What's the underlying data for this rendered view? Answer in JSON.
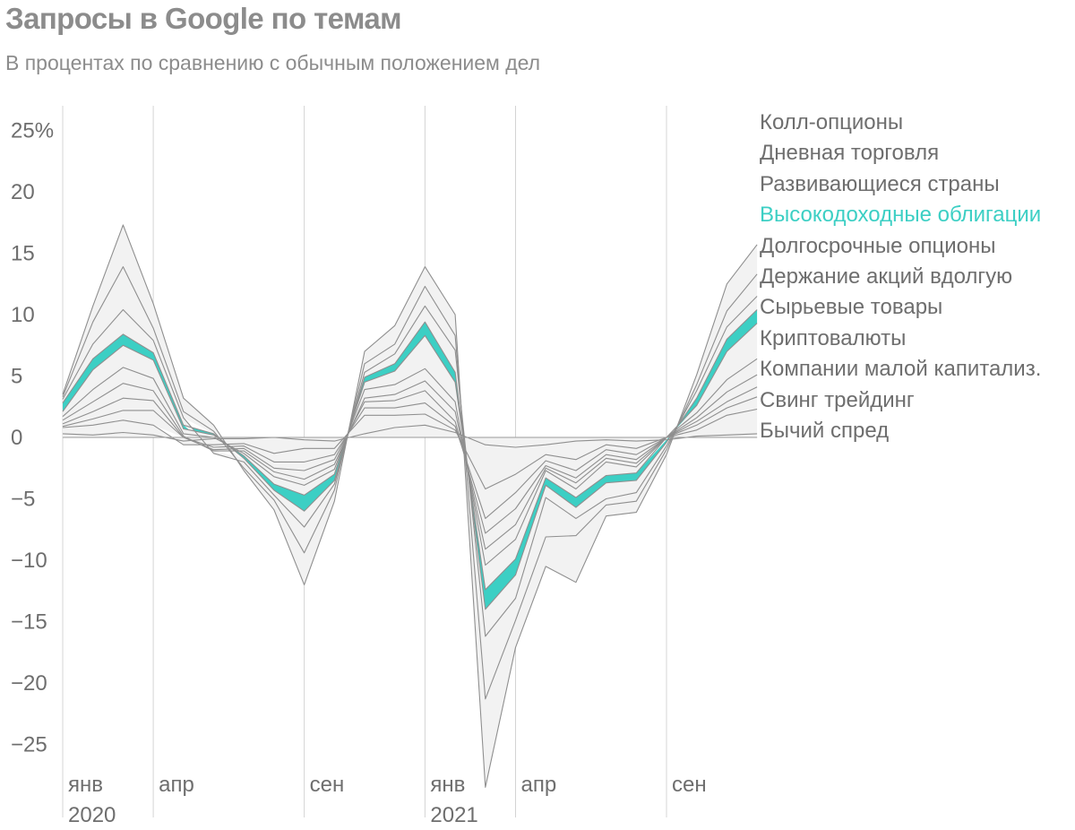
{
  "title": "Запросы в Google по темам",
  "subtitle": "В процентах по сравнению с обычным положением дел",
  "chart_data": {
    "type": "area",
    "stacked": true,
    "y_unit": "%",
    "ylim": [
      -28,
      25
    ],
    "y_ticks": [
      25,
      20,
      15,
      10,
      5,
      0,
      -5,
      -10,
      -15,
      -20,
      -25
    ],
    "y_tick_labels": [
      "25%",
      "20",
      "15",
      "10",
      "5",
      "0",
      "−5",
      "−10",
      "−15",
      "−20",
      "−25"
    ],
    "x_ticks": [
      {
        "x": "2020-01",
        "label": "янв",
        "year": "2020"
      },
      {
        "x": "2020-04",
        "label": "апр",
        "year": ""
      },
      {
        "x": "2020-09",
        "label": "сен",
        "year": ""
      },
      {
        "x": "2021-01",
        "label": "янв",
        "year": "2021"
      },
      {
        "x": "2021-04",
        "label": "апр",
        "year": ""
      },
      {
        "x": "2021-09",
        "label": "сен",
        "year": ""
      }
    ],
    "x": [
      "2020-01",
      "2020-02",
      "2020-03",
      "2020-04",
      "2020-05",
      "2020-06",
      "2020-07",
      "2020-08",
      "2020-09",
      "2020-10",
      "2020-11",
      "2020-12",
      "2021-01",
      "2021-02",
      "2021-03",
      "2021-04",
      "2021-05",
      "2021-06",
      "2021-07",
      "2021-08",
      "2021-09",
      "2021-10",
      "2021-11",
      "2021-12"
    ],
    "grid": "vertical lines at labelled months",
    "legend_position": "right",
    "highlight_color": "#3ccfc4",
    "series": [
      {
        "name": "Бычий спред",
        "values": [
          0.3,
          0.2,
          0.4,
          0.2,
          -0.3,
          -0.1,
          -0.1,
          0,
          -0.2,
          -0.3,
          0.3,
          0.8,
          1.0,
          0.4,
          -0.6,
          -0.8,
          -0.6,
          -0.3,
          -0.2,
          -0.3,
          -0.2,
          0.1,
          0.2,
          0.3
        ]
      },
      {
        "name": "Свинг трейдинг",
        "values": [
          0.5,
          0.8,
          1.0,
          0.8,
          -0.3,
          -0.5,
          -0.4,
          -1.3,
          -0.7,
          -0.6,
          1.5,
          1.0,
          0.9,
          0.2,
          -3.6,
          -2.2,
          -0.8,
          -1.5,
          -0.4,
          -0.6,
          0,
          0.5,
          1.6,
          2.0
        ]
      },
      {
        "name": "Компании малой капитализ.",
        "values": [
          0.1,
          0.5,
          0.8,
          1.2,
          0,
          -0.2,
          -0.2,
          -0.7,
          -1.1,
          -0.5,
          0.6,
          0.6,
          0.9,
          0.3,
          -2.4,
          -1.5,
          -0.5,
          -0.9,
          -0.4,
          -0.5,
          0,
          0.4,
          0.6,
          1.0
        ]
      },
      {
        "name": "Криптовалюты",
        "values": [
          0.2,
          0.6,
          1.0,
          0.8,
          0,
          -0.2,
          -0.2,
          -0.5,
          -0.7,
          -0.4,
          0.5,
          0.6,
          1.0,
          0.4,
          -1.2,
          -1.3,
          -0.4,
          -0.6,
          -0.4,
          -0.4,
          0,
          0.3,
          0.5,
          0.8
        ]
      },
      {
        "name": "Сырьевые товары",
        "values": [
          0.3,
          0.8,
          1.2,
          0.8,
          0.1,
          -0.1,
          -0.2,
          -0.3,
          -0.7,
          -0.4,
          0.3,
          0.5,
          0.8,
          0.8,
          -1.3,
          -1.3,
          -0.2,
          -0.4,
          -0.3,
          -0.3,
          0,
          0.3,
          0.8,
          1.0
        ]
      },
      {
        "name": "Держание акций вдолгую",
        "values": [
          0.3,
          1.0,
          1.3,
          1.0,
          0.2,
          0,
          -0.2,
          -0.4,
          -0.5,
          -0.4,
          0.7,
          0.8,
          1.0,
          0.8,
          -1.3,
          -1.2,
          -0.2,
          -0.5,
          -0.3,
          -0.3,
          0,
          0.4,
          1.0,
          1.3
        ]
      },
      {
        "name": "Долгосрочные опционы",
        "values": [
          0.4,
          1.6,
          1.8,
          1.5,
          0.4,
          0.2,
          -0.2,
          -0.6,
          -0.8,
          -0.4,
          0.6,
          1.1,
          2.7,
          1.6,
          -2.0,
          -1.6,
          -0.6,
          -0.7,
          -1.1,
          -0.5,
          0,
          0.6,
          2.3,
          2.9
        ]
      },
      {
        "name": "Высокодоходные облигации",
        "values": [
          0.7,
          0.9,
          0.9,
          0.6,
          0.3,
          0.1,
          -0.2,
          -0.5,
          -1.3,
          -0.5,
          0.4,
          0.6,
          1.1,
          0.8,
          -1.6,
          -1.3,
          -0.6,
          -0.8,
          -0.6,
          -0.6,
          -0.2,
          0.6,
          1.0,
          1.1
        ]
      },
      {
        "name": "Развивающиеся страны",
        "values": [
          0.3,
          1.2,
          2.0,
          1.0,
          0.6,
          -0.2,
          -0.3,
          -0.4,
          -1.3,
          -0.3,
          0.4,
          0.8,
          1.3,
          1.8,
          -2.2,
          -1.9,
          -1.0,
          -0.9,
          -1.3,
          -1.0,
          -0.3,
          0.6,
          1.0,
          1.1
        ]
      },
      {
        "name": "Дневная торговля",
        "values": [
          0.2,
          1.8,
          3.5,
          1.0,
          0.5,
          0.2,
          -0.5,
          -0.4,
          -2.1,
          -0.5,
          0.7,
          0.8,
          1.6,
          1.2,
          -5.1,
          -1.8,
          -3.2,
          -1.4,
          -0.5,
          -0.7,
          -0.3,
          0.5,
          1.3,
          1.8
        ]
      },
      {
        "name": "Колл-опционы",
        "values": [
          0.2,
          1.3,
          3.4,
          2.0,
          1.1,
          0.5,
          -0.2,
          -0.8,
          -2.6,
          -0.9,
          1.0,
          1.5,
          1.6,
          1.7,
          -7.2,
          -2.2,
          -2.4,
          -3.8,
          -0.9,
          -0.9,
          -0.4,
          0.8,
          2.2,
          2.4
        ]
      }
    ]
  }
}
